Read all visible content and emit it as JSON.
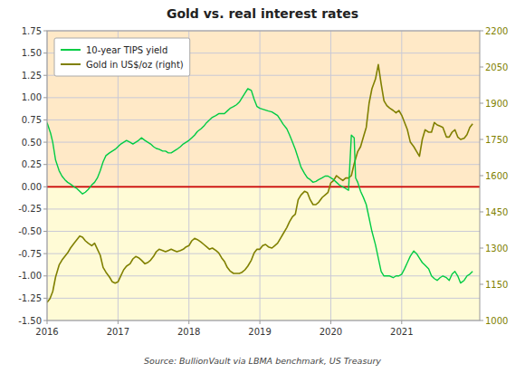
{
  "chart_data": {
    "type": "line",
    "title": "Gold vs. real interest rates",
    "annotations": [
      "Source:  BullionVault via  LBMA benchmark,  US Treasury"
    ],
    "xlim": [
      2016,
      2022.1
    ],
    "xticks": [
      2016,
      2017,
      2018,
      2019,
      2020,
      2021
    ],
    "ylim": [
      -1.5,
      1.75
    ],
    "yticks": [
      {
        "value": -1.5,
        "label": "-1.50"
      },
      {
        "value": -1.25,
        "label": "-1.25"
      },
      {
        "value": -1.0,
        "label": "-1.00"
      },
      {
        "value": -0.75,
        "label": "-0.75"
      },
      {
        "value": -0.5,
        "label": "-0.50"
      },
      {
        "value": -0.25,
        "label": "-0.25"
      },
      {
        "value": 0.0,
        "label": "0.00"
      },
      {
        "value": 0.25,
        "label": "0.25"
      },
      {
        "value": 0.5,
        "label": "0.50"
      },
      {
        "value": 0.75,
        "label": "0.75"
      },
      {
        "value": 1.0,
        "label": "1.00"
      },
      {
        "value": 1.25,
        "label": "1.25"
      },
      {
        "value": 1.5,
        "label": "1.50"
      },
      {
        "value": 1.75,
        "label": "1.75"
      }
    ],
    "y2lim": [
      1000,
      2200
    ],
    "y2ticks": [
      1000,
      1150,
      1300,
      1450,
      1600,
      1750,
      1900,
      2050,
      2200
    ],
    "grid": true,
    "legend": "upper left",
    "series": [
      {
        "name": "10-year TIPS yield",
        "color": "#00CC44",
        "x": [
          2016.0,
          2016.05,
          2016.08,
          2016.12,
          2016.17,
          2016.21,
          2016.25,
          2016.29,
          2016.33,
          2016.38,
          2016.42,
          2016.46,
          2016.5,
          2016.54,
          2016.58,
          2016.63,
          2016.67,
          2016.71,
          2016.75,
          2016.79,
          2016.83,
          2016.88,
          2016.92,
          2016.96,
          2017.0,
          2017.04,
          2017.08,
          2017.12,
          2017.17,
          2017.21,
          2017.25,
          2017.29,
          2017.33,
          2017.38,
          2017.42,
          2017.46,
          2017.5,
          2017.54,
          2017.58,
          2017.63,
          2017.67,
          2017.71,
          2017.75,
          2017.79,
          2017.83,
          2017.88,
          2017.92,
          2017.96,
          2018.0,
          2018.04,
          2018.08,
          2018.12,
          2018.17,
          2018.21,
          2018.25,
          2018.29,
          2018.33,
          2018.38,
          2018.42,
          2018.46,
          2018.5,
          2018.54,
          2018.58,
          2018.63,
          2018.67,
          2018.71,
          2018.75,
          2018.79,
          2018.83,
          2018.88,
          2018.92,
          2018.96,
          2019.0,
          2019.04,
          2019.08,
          2019.12,
          2019.17,
          2019.21,
          2019.25,
          2019.29,
          2019.33,
          2019.38,
          2019.42,
          2019.46,
          2019.5,
          2019.54,
          2019.58,
          2019.63,
          2019.67,
          2019.71,
          2019.75,
          2019.79,
          2019.83,
          2019.88,
          2019.92,
          2019.96,
          2020.0,
          2020.04,
          2020.08,
          2020.12,
          2020.17,
          2020.21,
          2020.25,
          2020.29,
          2020.33,
          2020.35,
          2020.38,
          2020.42,
          2020.46,
          2020.5,
          2020.54,
          2020.58,
          2020.63,
          2020.67,
          2020.71,
          2020.75,
          2020.79,
          2020.83,
          2020.88,
          2020.92,
          2020.96,
          2021.0,
          2021.04,
          2021.08,
          2021.12,
          2021.17,
          2021.21,
          2021.25,
          2021.29,
          2021.33,
          2021.38,
          2021.42,
          2021.46,
          2021.5,
          2021.54,
          2021.58,
          2021.63,
          2021.67,
          2021.71,
          2021.75,
          2021.79,
          2021.83,
          2021.88,
          2021.92,
          2021.96,
          2022.0
        ],
        "values": [
          0.72,
          0.6,
          0.5,
          0.3,
          0.18,
          0.12,
          0.08,
          0.05,
          0.03,
          0.0,
          -0.02,
          -0.05,
          -0.08,
          -0.06,
          -0.03,
          0.02,
          0.05,
          0.1,
          0.18,
          0.28,
          0.35,
          0.38,
          0.4,
          0.42,
          0.45,
          0.48,
          0.5,
          0.52,
          0.5,
          0.48,
          0.5,
          0.52,
          0.55,
          0.52,
          0.5,
          0.48,
          0.45,
          0.43,
          0.42,
          0.4,
          0.4,
          0.38,
          0.38,
          0.4,
          0.42,
          0.45,
          0.48,
          0.5,
          0.52,
          0.55,
          0.58,
          0.62,
          0.65,
          0.68,
          0.72,
          0.75,
          0.78,
          0.8,
          0.82,
          0.82,
          0.82,
          0.85,
          0.88,
          0.9,
          0.92,
          0.95,
          1.0,
          1.05,
          1.1,
          1.08,
          0.98,
          0.9,
          0.88,
          0.87,
          0.86,
          0.85,
          0.84,
          0.82,
          0.8,
          0.75,
          0.7,
          0.65,
          0.58,
          0.5,
          0.42,
          0.32,
          0.22,
          0.15,
          0.1,
          0.08,
          0.05,
          0.06,
          0.08,
          0.1,
          0.12,
          0.12,
          0.1,
          0.08,
          0.05,
          0.02,
          0.0,
          -0.02,
          -0.04,
          0.58,
          0.55,
          0.1,
          0.05,
          -0.05,
          -0.12,
          -0.2,
          -0.35,
          -0.5,
          -0.65,
          -0.8,
          -0.95,
          -1.0,
          -1.0,
          -1.0,
          -1.02,
          -1.0,
          -1.0,
          -0.98,
          -0.92,
          -0.85,
          -0.78,
          -0.72,
          -0.75,
          -0.8,
          -0.85,
          -0.88,
          -0.92,
          -1.0,
          -1.03,
          -1.05,
          -1.02,
          -1.0,
          -1.02,
          -1.05,
          -0.98,
          -0.95,
          -1.0,
          -1.08,
          -1.05,
          -1.0,
          -0.98,
          -0.95
        ]
      },
      {
        "name": "Gold in US$/oz (right)",
        "color": "#808000",
        "axis": "y2",
        "x": [
          2016.0,
          2016.04,
          2016.08,
          2016.12,
          2016.17,
          2016.21,
          2016.25,
          2016.29,
          2016.33,
          2016.38,
          2016.42,
          2016.46,
          2016.5,
          2016.54,
          2016.58,
          2016.63,
          2016.67,
          2016.71,
          2016.75,
          2016.79,
          2016.83,
          2016.88,
          2016.92,
          2016.96,
          2017.0,
          2017.04,
          2017.08,
          2017.12,
          2017.17,
          2017.21,
          2017.25,
          2017.29,
          2017.33,
          2017.38,
          2017.42,
          2017.46,
          2017.5,
          2017.54,
          2017.58,
          2017.63,
          2017.67,
          2017.71,
          2017.75,
          2017.79,
          2017.83,
          2017.88,
          2017.92,
          2017.96,
          2018.0,
          2018.04,
          2018.08,
          2018.12,
          2018.17,
          2018.21,
          2018.25,
          2018.29,
          2018.33,
          2018.38,
          2018.42,
          2018.46,
          2018.5,
          2018.54,
          2018.58,
          2018.63,
          2018.67,
          2018.71,
          2018.75,
          2018.79,
          2018.83,
          2018.88,
          2018.92,
          2018.96,
          2019.0,
          2019.04,
          2019.08,
          2019.12,
          2019.17,
          2019.21,
          2019.25,
          2019.29,
          2019.33,
          2019.38,
          2019.42,
          2019.46,
          2019.5,
          2019.54,
          2019.58,
          2019.63,
          2019.67,
          2019.71,
          2019.75,
          2019.79,
          2019.83,
          2019.88,
          2019.92,
          2019.96,
          2020.0,
          2020.04,
          2020.08,
          2020.12,
          2020.17,
          2020.21,
          2020.25,
          2020.29,
          2020.33,
          2020.38,
          2020.42,
          2020.46,
          2020.5,
          2020.54,
          2020.58,
          2020.63,
          2020.67,
          2020.71,
          2020.75,
          2020.79,
          2020.83,
          2020.88,
          2020.92,
          2020.96,
          2021.0,
          2021.04,
          2021.08,
          2021.12,
          2021.17,
          2021.21,
          2021.25,
          2021.29,
          2021.33,
          2021.38,
          2021.42,
          2021.46,
          2021.5,
          2021.54,
          2021.58,
          2021.63,
          2021.67,
          2021.71,
          2021.75,
          2021.79,
          2021.83,
          2021.88,
          2021.92,
          2021.96,
          2022.0
        ],
        "values": [
          1075,
          1090,
          1120,
          1180,
          1230,
          1250,
          1265,
          1280,
          1300,
          1320,
          1335,
          1350,
          1345,
          1330,
          1320,
          1310,
          1320,
          1295,
          1270,
          1220,
          1200,
          1180,
          1160,
          1155,
          1160,
          1185,
          1210,
          1225,
          1235,
          1255,
          1265,
          1260,
          1250,
          1235,
          1240,
          1250,
          1265,
          1285,
          1295,
          1290,
          1285,
          1290,
          1295,
          1290,
          1285,
          1290,
          1295,
          1305,
          1310,
          1330,
          1340,
          1335,
          1325,
          1315,
          1305,
          1295,
          1300,
          1290,
          1280,
          1260,
          1245,
          1220,
          1205,
          1195,
          1195,
          1195,
          1200,
          1210,
          1225,
          1250,
          1280,
          1295,
          1295,
          1310,
          1315,
          1305,
          1300,
          1310,
          1320,
          1340,
          1360,
          1385,
          1410,
          1430,
          1440,
          1500,
          1520,
          1535,
          1530,
          1500,
          1480,
          1480,
          1490,
          1510,
          1520,
          1530,
          1570,
          1580,
          1600,
          1590,
          1580,
          1590,
          1590,
          1600,
          1650,
          1700,
          1720,
          1760,
          1800,
          1900,
          1960,
          2000,
          2060,
          1980,
          1910,
          1890,
          1880,
          1870,
          1860,
          1870,
          1850,
          1820,
          1790,
          1740,
          1720,
          1700,
          1680,
          1750,
          1790,
          1780,
          1780,
          1820,
          1810,
          1805,
          1800,
          1760,
          1760,
          1780,
          1790,
          1760,
          1750,
          1755,
          1770,
          1800,
          1815
        ]
      }
    ]
  }
}
